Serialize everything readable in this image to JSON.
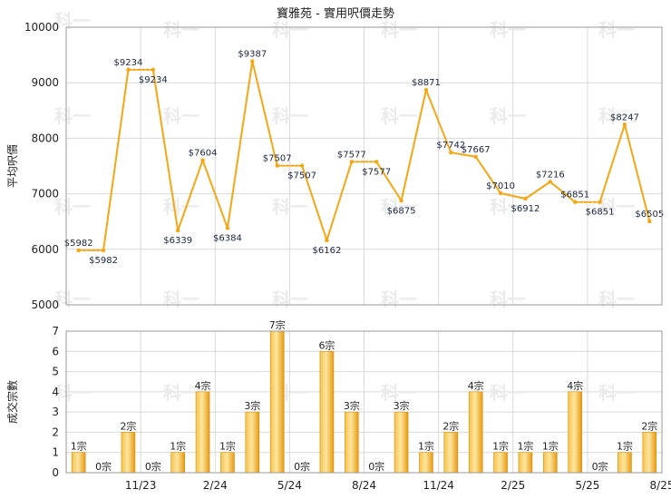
{
  "chart_data": [
    {
      "type": "line",
      "title": "寶雅苑 - 實用呎價走勢",
      "ylabel": "平均呎價",
      "xlabel": "",
      "ylim": [
        5000,
        10000
      ],
      "yticks": [
        5000,
        6000,
        7000,
        8000,
        9000,
        10000
      ],
      "grid": true,
      "series": [
        {
          "values": [
            5982,
            5982,
            9234,
            9234,
            6339,
            7604,
            6384,
            9387,
            7507,
            7507,
            6162,
            7577,
            7577,
            6875,
            8871,
            7742,
            7667,
            7010,
            6912,
            7216,
            6851,
            6851,
            8247,
            6505
          ],
          "labels": [
            "$5982",
            "$5982",
            "$9234",
            "$9234",
            "$6339",
            "$7604",
            "$6384",
            "$9387",
            "$7507",
            "$7507",
            "$6162",
            "$7577",
            "$7577",
            "$6875",
            "$8871",
            "$7742",
            "$7667",
            "$7010",
            "$6912",
            "$7216",
            "$6851",
            "$6851",
            "$8247",
            "$6505"
          ],
          "imputed": [
            false,
            true,
            false,
            true,
            false,
            false,
            false,
            false,
            false,
            true,
            false,
            false,
            true,
            false,
            false,
            false,
            false,
            false,
            false,
            false,
            false,
            true,
            false,
            false
          ],
          "color": "#f5a614"
        }
      ]
    },
    {
      "type": "bar",
      "xlabel": "",
      "ylabel": "成交宗數",
      "ylim": [
        0,
        7
      ],
      "yticks": [
        0,
        1,
        2,
        3,
        4,
        5,
        6,
        7
      ],
      "grid": true,
      "categories": [
        "",
        "",
        "11/23",
        "",
        "",
        "2/24",
        "",
        "",
        "5/24",
        "",
        "",
        "8/24",
        "",
        "",
        "11/24",
        "",
        "",
        "2/25",
        "",
        "",
        "5/25",
        "",
        "",
        "8/25"
      ],
      "values": [
        1,
        0,
        2,
        0,
        1,
        4,
        1,
        3,
        7,
        0,
        6,
        3,
        0,
        3,
        1,
        2,
        4,
        1,
        1,
        1,
        4,
        0,
        1,
        2
      ],
      "labels": [
        "1宗",
        "0宗",
        "2宗",
        "0宗",
        "1宗",
        "4宗",
        "1宗",
        "3宗",
        "7宗",
        "0宗",
        "6宗",
        "3宗",
        "0宗",
        "3宗",
        "1宗",
        "2宗",
        "4宗",
        "1宗",
        "1宗",
        "1宗",
        "4宗",
        "0宗",
        "1宗",
        "2宗"
      ],
      "color": "#f2a71b"
    }
  ],
  "watermark": "科一"
}
